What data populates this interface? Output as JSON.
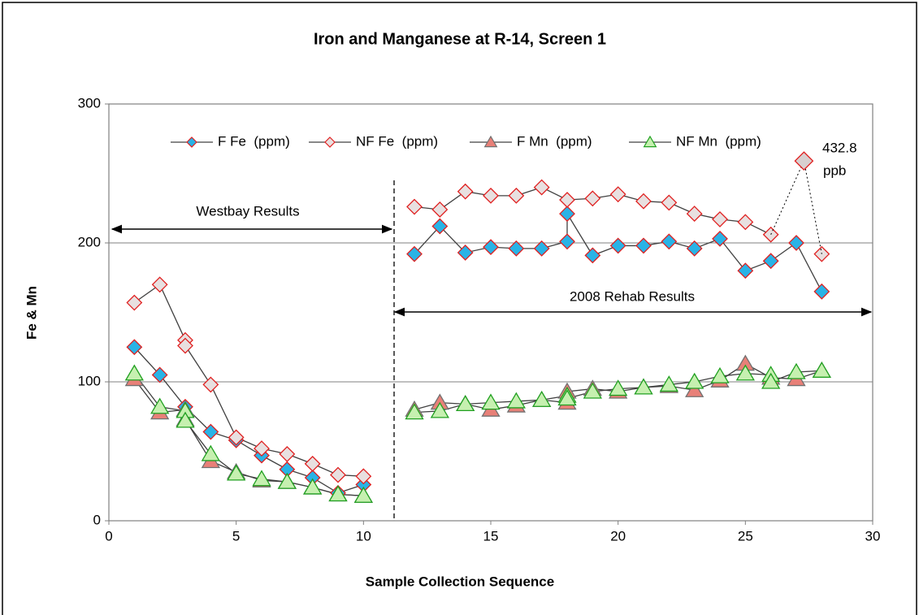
{
  "chart_data": {
    "type": "line",
    "title": "Iron and Manganese at R-14, Screen 1",
    "x_label": "Sample Collection Sequence",
    "y_label": "Fe & Mn",
    "xlim": [
      0,
      30
    ],
    "xticks": [
      0,
      5,
      10,
      15,
      20,
      25,
      30
    ],
    "ylim": [
      0,
      300
    ],
    "yticks": [
      0,
      100,
      200,
      300
    ],
    "grid": true,
    "legend": "top",
    "line_color": "#404040",
    "series": [
      {
        "name": "F Fe  (ppm)",
        "marker": "diamond",
        "color": "#29b3e6",
        "stroke": "#e02020",
        "x": [
          1,
          2,
          3,
          4,
          5,
          6,
          7,
          8,
          9,
          10,
          11,
          12,
          13,
          14,
          15,
          16,
          17,
          18,
          18,
          19,
          20,
          21,
          22,
          23,
          24,
          25,
          26,
          27,
          28
        ],
        "values": [
          125,
          105,
          82,
          64,
          58,
          47,
          37,
          31,
          20,
          26,
          null,
          192,
          212,
          193,
          197,
          196,
          196,
          201,
          221,
          191,
          198,
          198,
          201,
          196,
          203,
          180,
          187,
          200,
          165
        ]
      },
      {
        "name": "NF Fe  (ppm)",
        "marker": "diamond",
        "color": "#e8e0e0",
        "stroke": "#e02020",
        "x": [
          1,
          2,
          3,
          3,
          4,
          5,
          6,
          7,
          8,
          9,
          10,
          11,
          12,
          13,
          14,
          15,
          16,
          17,
          18,
          19,
          20,
          21,
          22,
          23,
          24,
          25,
          26,
          27,
          28
        ],
        "values": [
          157,
          170,
          130,
          126,
          98,
          60,
          52,
          48,
          41,
          33,
          32,
          null,
          226,
          224,
          237,
          234,
          234,
          240,
          231,
          232,
          235,
          230,
          229,
          221,
          217,
          215,
          206,
          null,
          192
        ]
      },
      {
        "name": "F Mn  (ppm)",
        "marker": "triangle",
        "color": "#e88078",
        "stroke": "#707070",
        "x": [
          1,
          2,
          3,
          3,
          4,
          5,
          6,
          7,
          8,
          9,
          10,
          11,
          12,
          13,
          14,
          15,
          16,
          17,
          18,
          18,
          19,
          20,
          21,
          22,
          23,
          24,
          25,
          26,
          27,
          28
        ],
        "values": [
          102,
          78,
          80,
          73,
          43,
          35,
          29,
          28,
          24,
          19,
          18,
          null,
          80,
          85,
          84,
          80,
          83,
          87,
          85,
          93,
          95,
          93,
          96,
          97,
          94,
          101,
          113,
          103,
          102,
          108
        ]
      },
      {
        "name": "NF Mn  (ppm)",
        "marker": "triangle",
        "color": "#c6f0b0",
        "stroke": "#20a020",
        "x": [
          1,
          2,
          3,
          3,
          4,
          5,
          6,
          7,
          8,
          9,
          10,
          11,
          12,
          13,
          14,
          15,
          16,
          17,
          18,
          18,
          19,
          20,
          21,
          22,
          23,
          24,
          25,
          26,
          26,
          27,
          28
        ],
        "values": [
          106,
          82,
          79,
          72,
          48,
          34,
          30,
          28,
          24,
          19,
          18,
          null,
          78,
          79,
          84,
          85,
          86,
          87,
          90,
          88,
          93,
          95,
          96,
          98,
          100,
          104,
          106,
          105,
          100,
          107,
          108
        ]
      }
    ],
    "outlier": {
      "x": 27.3,
      "value": 259,
      "label": "432.8",
      "unit": "ppb"
    },
    "annotations": [
      "Westbay Results",
      "2008 Rehab Results"
    ]
  }
}
